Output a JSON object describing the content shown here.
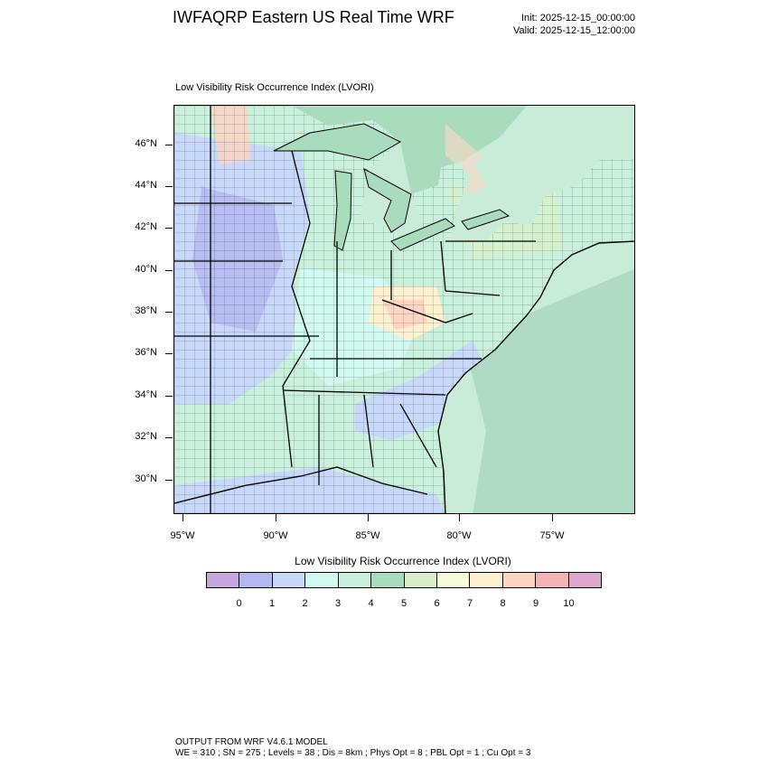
{
  "header": {
    "title": "IWFAQRP Eastern US Real Time WRF",
    "init": "Init: 2025-12-15_00:00:00",
    "valid": "Valid: 2025-12-15_12:00:00"
  },
  "map": {
    "subtitle": "Low Visibility Risk Occurrence Index   (LVORI)",
    "lat_labels": [
      "46°N",
      "44°N",
      "42°N",
      "40°N",
      "38°N",
      "36°N",
      "34°N",
      "32°N",
      "30°N"
    ],
    "lon_labels": [
      "95°W",
      "90°W",
      "85°W",
      "80°W",
      "75°W"
    ]
  },
  "legend": {
    "title": "Low Visibility Risk Occurrence Index  (LVORI)",
    "labels": [
      "0",
      "1",
      "2",
      "3",
      "4",
      "5",
      "6",
      "7",
      "8",
      "9",
      "10"
    ],
    "colors": [
      "#c8a8dc",
      "#b4b8f0",
      "#c8d8fa",
      "#d0faf0",
      "#c8f0dc",
      "#a8dcbc",
      "#d8f0c8",
      "#f4fcd8",
      "#fff0d0",
      "#ffd4c0",
      "#f4b4b4",
      "#dca8d0"
    ]
  },
  "palette": {
    "ocean": "#c8ecd8",
    "ocean_deep": "#a4d4bc",
    "canada": "#a8dcbc",
    "low": "#c8d8fa",
    "lowest": "#b4b8f0",
    "mid": "#d0faf0",
    "mid2": "#c8f0dc",
    "highmid": "#d8f0c8",
    "high": "#fff0d0",
    "higher": "#ffd4c0",
    "highest": "#f4b4b4",
    "water": "#a8dcbc"
  },
  "footer": {
    "line1": "OUTPUT FROM WRF V4.6.1 MODEL",
    "line2": "WE = 310 ; SN = 275 ; Levels = 38 ; Dis = 8km ; Phys Opt = 8 ; PBL Opt = 1 ; Cu Opt = 3"
  }
}
